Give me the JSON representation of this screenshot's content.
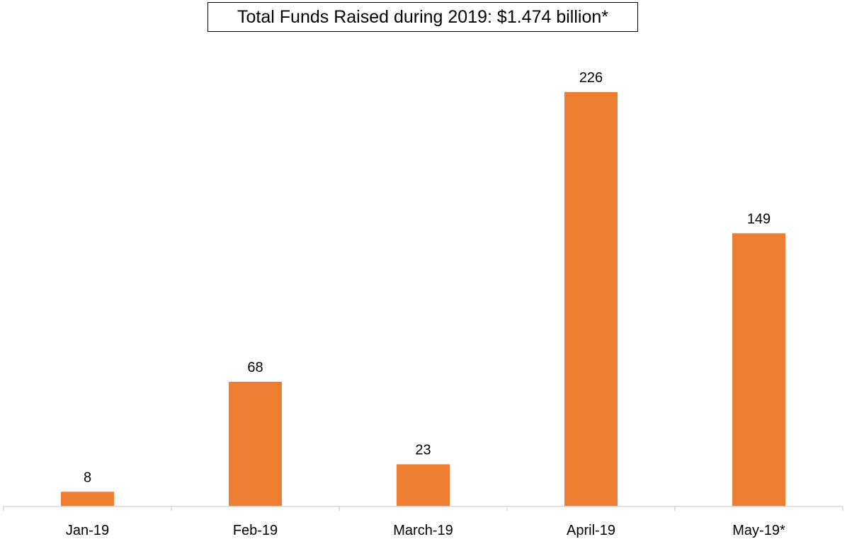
{
  "chart_data": {
    "type": "bar",
    "title": "Total Funds Raised during 2019: $1.474 billion*",
    "xlabel": "",
    "ylabel": "",
    "categories": [
      "Jan-19",
      "Feb-19",
      "March-19",
      "April-19",
      "May-19*"
    ],
    "values": [
      8,
      68,
      23,
      226,
      149
    ],
    "data_labels": [
      "8",
      "68",
      "23",
      "226",
      "149"
    ],
    "ylim": [
      0,
      226
    ],
    "grid": false,
    "legend": "none",
    "colors": {
      "bar": "#ED7D31",
      "axis": "#D9D9D9",
      "text": "#000000"
    }
  }
}
